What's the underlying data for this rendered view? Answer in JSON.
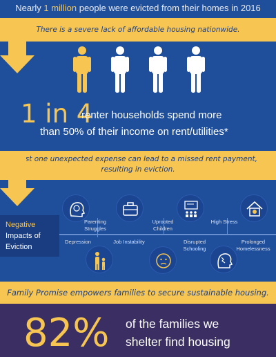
{
  "header": {
    "title_pre": "Nearly ",
    "title_highlight": "1 million",
    "title_post": " people were evicted from their homes in 2016"
  },
  "band1": {
    "text": "There is a severe lack of affordable housing nationwide."
  },
  "stat": {
    "big": "1 in 4",
    "line1": "renter households spend more",
    "line2": "than 50% of their income on rent/utilities*",
    "highlight_count": 1,
    "total_count": 4
  },
  "band2": {
    "line1": "Just one unexpected expense can lead to a missed rent payment,",
    "line2": "resulting in eviction."
  },
  "impacts": {
    "label_line1": "Negative",
    "label_line2": "Impacts of",
    "label_line3": "Eviction",
    "items": [
      {
        "label": "Depression",
        "icon": "brain-head-icon"
      },
      {
        "label": "Parenting Struggles",
        "icon": "parent-child-icon"
      },
      {
        "label": "Job Instability",
        "icon": "briefcase-icon"
      },
      {
        "label": "Uprooted Children",
        "icon": "sad-face-icon"
      },
      {
        "label": "Disrupted Schooling",
        "icon": "classroom-icon"
      },
      {
        "label": "High Stress",
        "icon": "stressed-head-icon"
      },
      {
        "label": "Prolonged Homelessness",
        "icon": "house-heart-icon"
      }
    ]
  },
  "band3": {
    "text": "Family Promise empowers families to secure sustainable housing."
  },
  "result": {
    "pct": "82%",
    "line1": "of the families we",
    "line2": "shelter find housing"
  },
  "colors": {
    "background": "#1f4e9a",
    "accent": "#f6c552",
    "bottom": "#3a2e62"
  }
}
